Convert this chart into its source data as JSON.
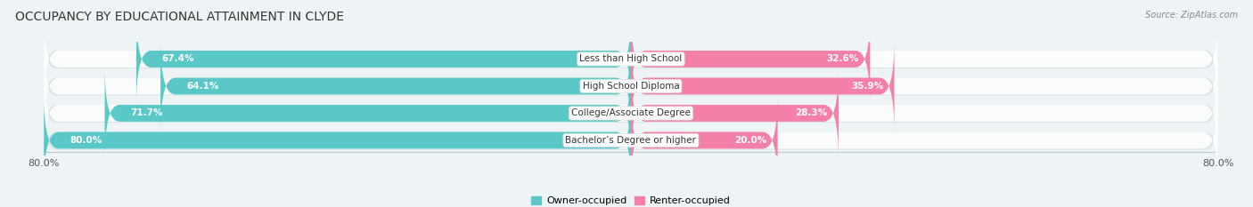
{
  "title": "OCCUPANCY BY EDUCATIONAL ATTAINMENT IN CLYDE",
  "source": "Source: ZipAtlas.com",
  "categories": [
    "Less than High School",
    "High School Diploma",
    "College/Associate Degree",
    "Bachelor’s Degree or higher"
  ],
  "owner_values": [
    67.4,
    64.1,
    71.7,
    80.0
  ],
  "renter_values": [
    32.6,
    35.9,
    28.3,
    20.0
  ],
  "owner_color": "#5bc8c8",
  "renter_color": "#f47fa8",
  "bar_bg_color": "#e2eef0",
  "bar_height": 0.62,
  "total_width": 100.0,
  "owner_label": "Owner-occupied",
  "renter_label": "Renter-occupied",
  "tick_label_left": "80.0%",
  "tick_label_right": "80.0%",
  "title_fontsize": 10,
  "cat_fontsize": 7.5,
  "value_fontsize": 7.5,
  "source_fontsize": 7,
  "legend_fontsize": 8,
  "background_color": "#eef3f5"
}
